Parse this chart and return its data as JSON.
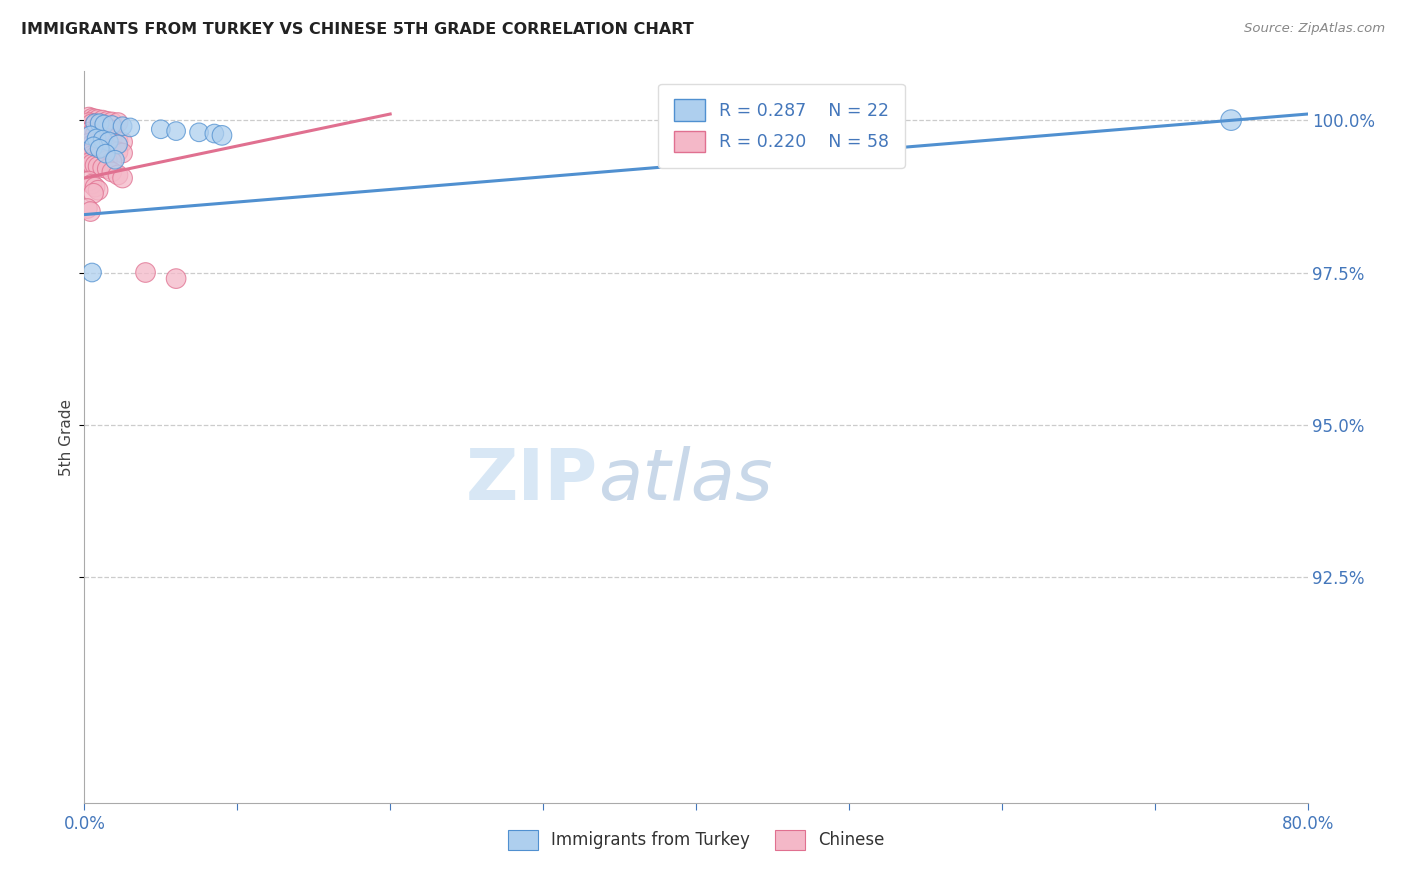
{
  "title": "IMMIGRANTS FROM TURKEY VS CHINESE 5TH GRADE CORRELATION CHART",
  "source": "Source: ZipAtlas.com",
  "ylabel": "5th Grade",
  "ylabel_right_values": [
    1.0,
    0.975,
    0.95,
    0.925
  ],
  "xmin": 0.0,
  "xmax": 0.8,
  "ymin": 0.888,
  "ymax": 1.008,
  "legend_r_blue": "R = 0.287",
  "legend_n_blue": "N = 22",
  "legend_r_pink": "R = 0.220",
  "legend_n_pink": "N = 58",
  "legend_label_blue": "Immigrants from Turkey",
  "legend_label_pink": "Chinese",
  "blue_color": "#aecfee",
  "pink_color": "#f4b8c8",
  "blue_line_color": "#5090d0",
  "pink_line_color": "#e07090",
  "blue_trend_x0": 0.0,
  "blue_trend_y0": 0.9845,
  "blue_trend_x1": 0.8,
  "blue_trend_y1": 1.001,
  "pink_trend_x0": 0.0,
  "pink_trend_y0": 0.9905,
  "pink_trend_x1": 0.2,
  "pink_trend_y1": 1.001,
  "blue_scatter_x": [
    0.007,
    0.01,
    0.013,
    0.018,
    0.025,
    0.03,
    0.05,
    0.06,
    0.075,
    0.085,
    0.004,
    0.008,
    0.012,
    0.016,
    0.022,
    0.006,
    0.01,
    0.014,
    0.02,
    0.005,
    0.09,
    0.75
  ],
  "blue_scatter_y": [
    0.9995,
    0.9995,
    0.9993,
    0.9992,
    0.999,
    0.9988,
    0.9985,
    0.9982,
    0.998,
    0.9978,
    0.9975,
    0.997,
    0.9968,
    0.9965,
    0.996,
    0.9957,
    0.9953,
    0.9945,
    0.9935,
    0.975,
    0.9975,
    1.0
  ],
  "blue_scatter_s": [
    180,
    180,
    180,
    180,
    180,
    180,
    180,
    180,
    180,
    180,
    180,
    180,
    180,
    180,
    180,
    180,
    180,
    180,
    180,
    180,
    200,
    220
  ],
  "pink_scatter_x": [
    0.003,
    0.005,
    0.007,
    0.009,
    0.012,
    0.015,
    0.018,
    0.022,
    0.003,
    0.005,
    0.007,
    0.009,
    0.012,
    0.015,
    0.018,
    0.003,
    0.005,
    0.007,
    0.009,
    0.012,
    0.015,
    0.018,
    0.022,
    0.025,
    0.003,
    0.005,
    0.007,
    0.009,
    0.012,
    0.015,
    0.018,
    0.022,
    0.025,
    0.003,
    0.005,
    0.007,
    0.009,
    0.012,
    0.015,
    0.018,
    0.003,
    0.005,
    0.007,
    0.009,
    0.012,
    0.015,
    0.018,
    0.022,
    0.025,
    0.003,
    0.005,
    0.007,
    0.009,
    0.006,
    0.04,
    0.06,
    0.002,
    0.004
  ],
  "pink_scatter_y": [
    1.0005,
    1.0003,
    1.0002,
    1.0001,
    1.0,
    0.9998,
    0.9997,
    0.9996,
    0.9994,
    0.9992,
    0.999,
    0.9988,
    0.9986,
    0.9984,
    0.9982,
    0.998,
    0.9978,
    0.9976,
    0.9974,
    0.9972,
    0.997,
    0.9968,
    0.9966,
    0.9964,
    0.9962,
    0.996,
    0.9958,
    0.9956,
    0.9954,
    0.9952,
    0.995,
    0.9948,
    0.9946,
    0.9944,
    0.9942,
    0.994,
    0.9938,
    0.9936,
    0.9934,
    0.9932,
    0.993,
    0.9928,
    0.9926,
    0.9924,
    0.9922,
    0.992,
    0.9915,
    0.991,
    0.9905,
    0.99,
    0.9895,
    0.989,
    0.9885,
    0.988,
    0.975,
    0.974,
    0.9855,
    0.985
  ],
  "pink_scatter_s": [
    200,
    200,
    200,
    200,
    200,
    200,
    200,
    200,
    250,
    250,
    250,
    250,
    250,
    250,
    250,
    200,
    200,
    200,
    200,
    200,
    200,
    200,
    200,
    200,
    200,
    200,
    200,
    200,
    200,
    200,
    200,
    200,
    200,
    200,
    200,
    200,
    200,
    200,
    200,
    200,
    200,
    200,
    200,
    200,
    200,
    200,
    200,
    200,
    200,
    200,
    200,
    200,
    200,
    200,
    200,
    200,
    200,
    200
  ]
}
